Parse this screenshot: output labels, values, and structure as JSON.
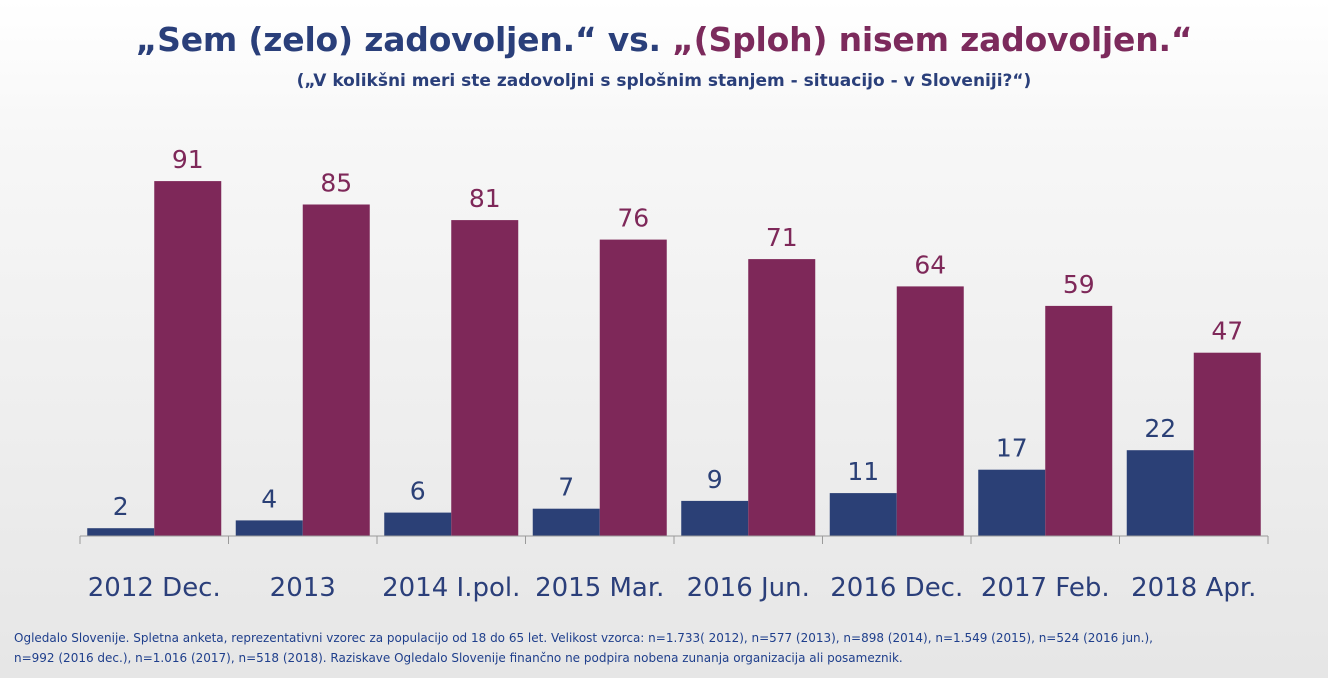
{
  "title_part1": "„Sem (zelo) zadovoljen.“ vs.",
  "title_part2": "„(Sploh) nisem zadovoljen.“",
  "subtitle": "(„V kolikšni meri ste zadovoljni s splošnim stanjem  - situacijo - v Sloveniji?“)",
  "footnote_line1": "Ogledalo Slovenije. Spletna anketa, reprezentativni vzorec za populacijo od 18 do 65 let. Velikost vzorca: n=1.733( 2012), n=577 (2013), n=898 (2014), n=1.549 (2015), n=524 (2016 jun.),",
  "footnote_line2": "n=992 (2016 dec.), n=1.016 (2017), n=518 (2018). Raziskave Ogledalo Slovenije finančno ne podpira nobena zunanja organizacija ali posameznik.",
  "colors": {
    "series1": "#2b4076",
    "series2": "#7e2859"
  },
  "chart_data": {
    "type": "bar",
    "categories": [
      "2012 Dec.",
      "2013",
      "2014 I.pol.",
      "2015 Mar.",
      "2016 Jun.",
      "2016 Dec.",
      "2017 Feb.",
      "2018 Apr."
    ],
    "series": [
      {
        "values": [
          2,
          4,
          6,
          7,
          9,
          11,
          17,
          22
        ]
      },
      {
        "values": [
          91,
          85,
          81,
          76,
          71,
          64,
          59,
          47
        ]
      }
    ],
    "ylim": [
      0,
      100
    ],
    "data_labels": true,
    "grid": false,
    "legend": "none"
  }
}
